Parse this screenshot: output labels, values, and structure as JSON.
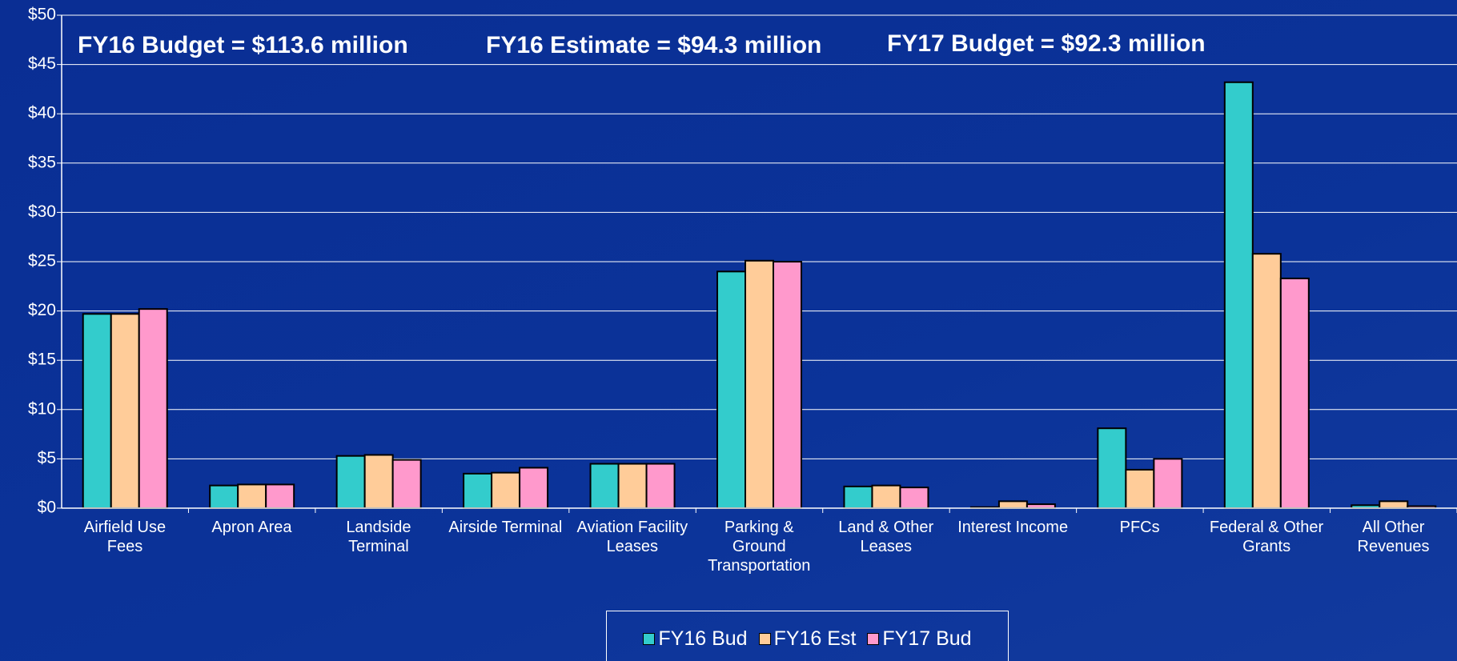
{
  "chart_data": {
    "type": "bar",
    "annotations": [
      "FY16 Budget = $113.6 million",
      "FY16 Estimate = $94.3 million",
      "FY17 Budget = $92.3 million"
    ],
    "categories": [
      "Airfield Use\nFees",
      "Apron Area",
      "Landside\nTerminal",
      "Airside Terminal",
      "Aviation Facility\nLeases",
      "Parking &\nGround\nTransportation",
      "Land & Other\nLeases",
      "Interest Income",
      "PFCs",
      "Federal & Other\nGrants",
      "All Other\nRevenues"
    ],
    "series": [
      {
        "name": "FY16 Bud",
        "color": "#33cccc",
        "values": [
          19.7,
          2.3,
          5.3,
          3.5,
          4.5,
          24.0,
          2.2,
          0.1,
          8.1,
          43.2,
          0.3
        ]
      },
      {
        "name": "FY16 Est",
        "color": "#ffcc99",
        "values": [
          19.7,
          2.4,
          5.4,
          3.6,
          4.5,
          25.1,
          2.3,
          0.7,
          3.9,
          25.8,
          0.7
        ]
      },
      {
        "name": "FY17 Bud",
        "color": "#ff99cc",
        "values": [
          20.2,
          2.4,
          4.9,
          4.1,
          4.5,
          25.0,
          2.1,
          0.4,
          5.0,
          23.3,
          0.2
        ]
      }
    ],
    "ylim": [
      0,
      50
    ],
    "yticks": [
      {
        "value": 0,
        "label": "$0"
      },
      {
        "value": 5,
        "label": "$5"
      },
      {
        "value": 10,
        "label": "$10"
      },
      {
        "value": 15,
        "label": "$15"
      },
      {
        "value": 20,
        "label": "$20"
      },
      {
        "value": 25,
        "label": "$25"
      },
      {
        "value": 30,
        "label": "$30"
      },
      {
        "value": 35,
        "label": "$35"
      },
      {
        "value": 40,
        "label": "$40"
      },
      {
        "value": 45,
        "label": "$45"
      },
      {
        "value": 50,
        "label": "$50"
      }
    ],
    "grid": true,
    "legend": "bottom"
  }
}
